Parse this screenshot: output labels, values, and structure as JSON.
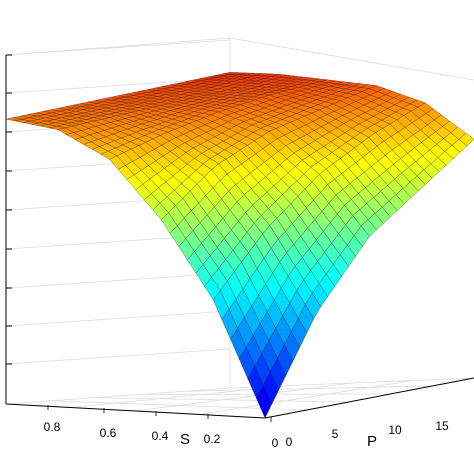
{
  "chart_data": {
    "type": "surface",
    "title": "",
    "xlabel": "S",
    "ylabel": "P",
    "zlabel": "",
    "x_ticks": [
      "0.8",
      "0.6",
      "0.4",
      "0.2",
      "0"
    ],
    "y_ticks": [
      "0",
      "5",
      "10",
      "15"
    ],
    "x_range": [
      0,
      1
    ],
    "y_range": [
      0,
      18
    ],
    "colormap": "jet",
    "grid": true,
    "note": "z values read from colour only; z-axis tick labels are cropped out of the image",
    "surface_rows_P": [
      0,
      4,
      8,
      12,
      18
    ],
    "surface_cols_S": [
      1.0,
      0.8,
      0.6,
      0.4,
      0.2,
      0.0
    ],
    "z_normalized": [
      [
        0.74,
        0.72,
        0.65,
        0.5,
        0.3,
        0.0
      ],
      [
        0.76,
        0.74,
        0.7,
        0.62,
        0.46,
        0.25
      ],
      [
        0.78,
        0.76,
        0.74,
        0.69,
        0.58,
        0.42
      ],
      [
        0.8,
        0.78,
        0.77,
        0.73,
        0.66,
        0.52
      ],
      [
        0.82,
        0.81,
        0.79,
        0.77,
        0.72,
        0.62
      ]
    ]
  }
}
